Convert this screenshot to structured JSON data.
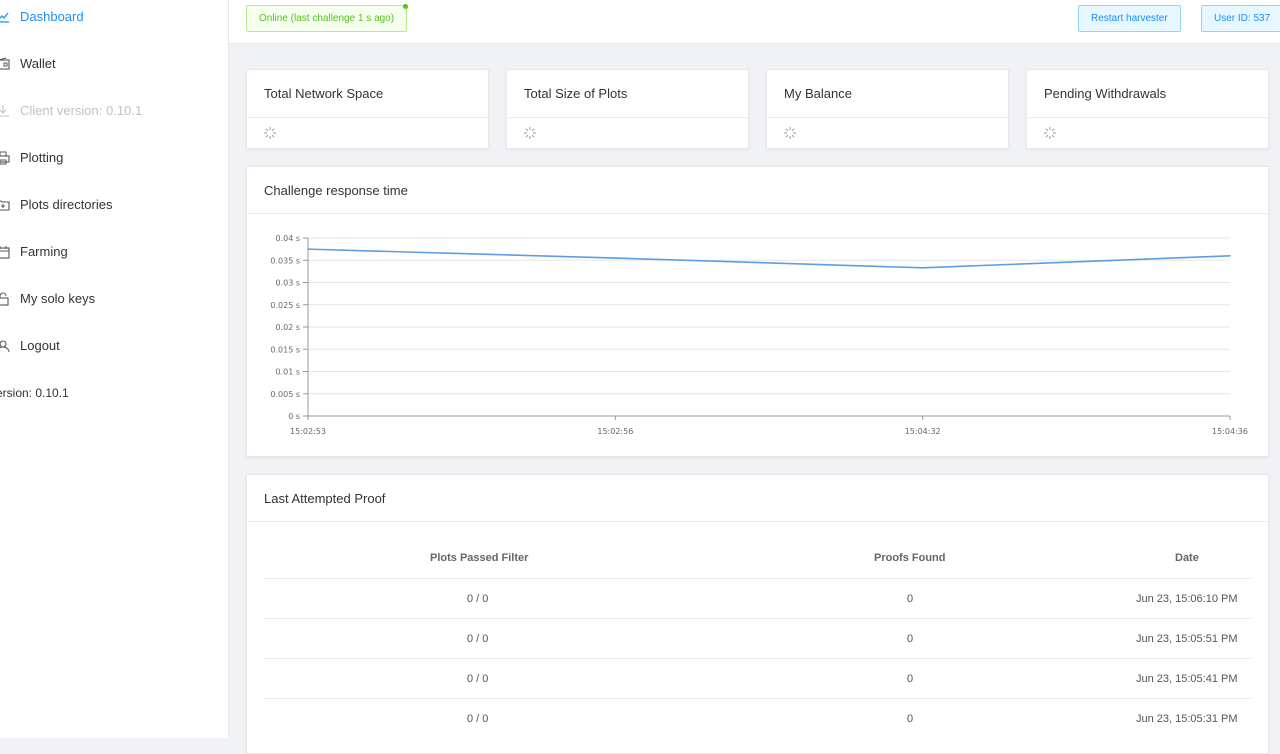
{
  "sidebar": {
    "items": [
      {
        "label": "Dashboard",
        "icon": "line-chart-icon",
        "state": "active"
      },
      {
        "label": "Wallet",
        "icon": "wallet-icon",
        "state": "normal"
      },
      {
        "label": "Client version: 0.10.1",
        "icon": "download-icon",
        "state": "disabled"
      },
      {
        "label": "Plotting",
        "icon": "printer-icon",
        "state": "normal"
      },
      {
        "label": "Plots directories",
        "icon": "folder-add-icon",
        "state": "normal"
      },
      {
        "label": "Farming",
        "icon": "calendar-icon",
        "state": "normal"
      },
      {
        "label": "My solo keys",
        "icon": "unlock-icon",
        "state": "normal"
      },
      {
        "label": "Logout",
        "icon": "user-icon",
        "state": "normal"
      }
    ],
    "version": "ersion: 0.10.1"
  },
  "topbar": {
    "status": "Online (last challenge 1 s ago)",
    "restart_label": "Restart harvester",
    "user_label": "User ID: 537"
  },
  "stats": [
    {
      "title": "Total Network Space"
    },
    {
      "title": "Total Size of Plots"
    },
    {
      "title": "My Balance"
    },
    {
      "title": "Pending Withdrawals"
    }
  ],
  "chart_card": {
    "title": "Challenge response time"
  },
  "chart_data": {
    "type": "line",
    "title": "Challenge response time",
    "x": [
      "15:02:53",
      "15:02:56",
      "15:04:32",
      "15:04:36"
    ],
    "series": [
      {
        "values": [
          0.0375,
          0.0355,
          0.0333,
          0.036
        ]
      }
    ],
    "ylim": [
      0,
      0.04
    ],
    "yticks": [
      "0 s",
      "0.005 s",
      "0.01 s",
      "0.015 s",
      "0.02 s",
      "0.025 s",
      "0.03 s",
      "0.035 s",
      "0.04 s"
    ],
    "grid": true,
    "color": "#5b9ee6"
  },
  "proof": {
    "title": "Last Attempted Proof",
    "columns": [
      "Plots Passed Filter",
      "Proofs Found",
      "Date"
    ],
    "rows": [
      [
        "0 / 0",
        "0",
        "Jun 23, 15:06:10 PM"
      ],
      [
        "0 / 0",
        "0",
        "Jun 23, 15:05:51 PM"
      ],
      [
        "0 / 0",
        "0",
        "Jun 23, 15:05:41 PM"
      ],
      [
        "0 / 0",
        "0",
        "Jun 23, 15:05:31 PM"
      ]
    ]
  },
  "colors": {
    "accent": "#1890ff",
    "online": "#52c41a"
  }
}
